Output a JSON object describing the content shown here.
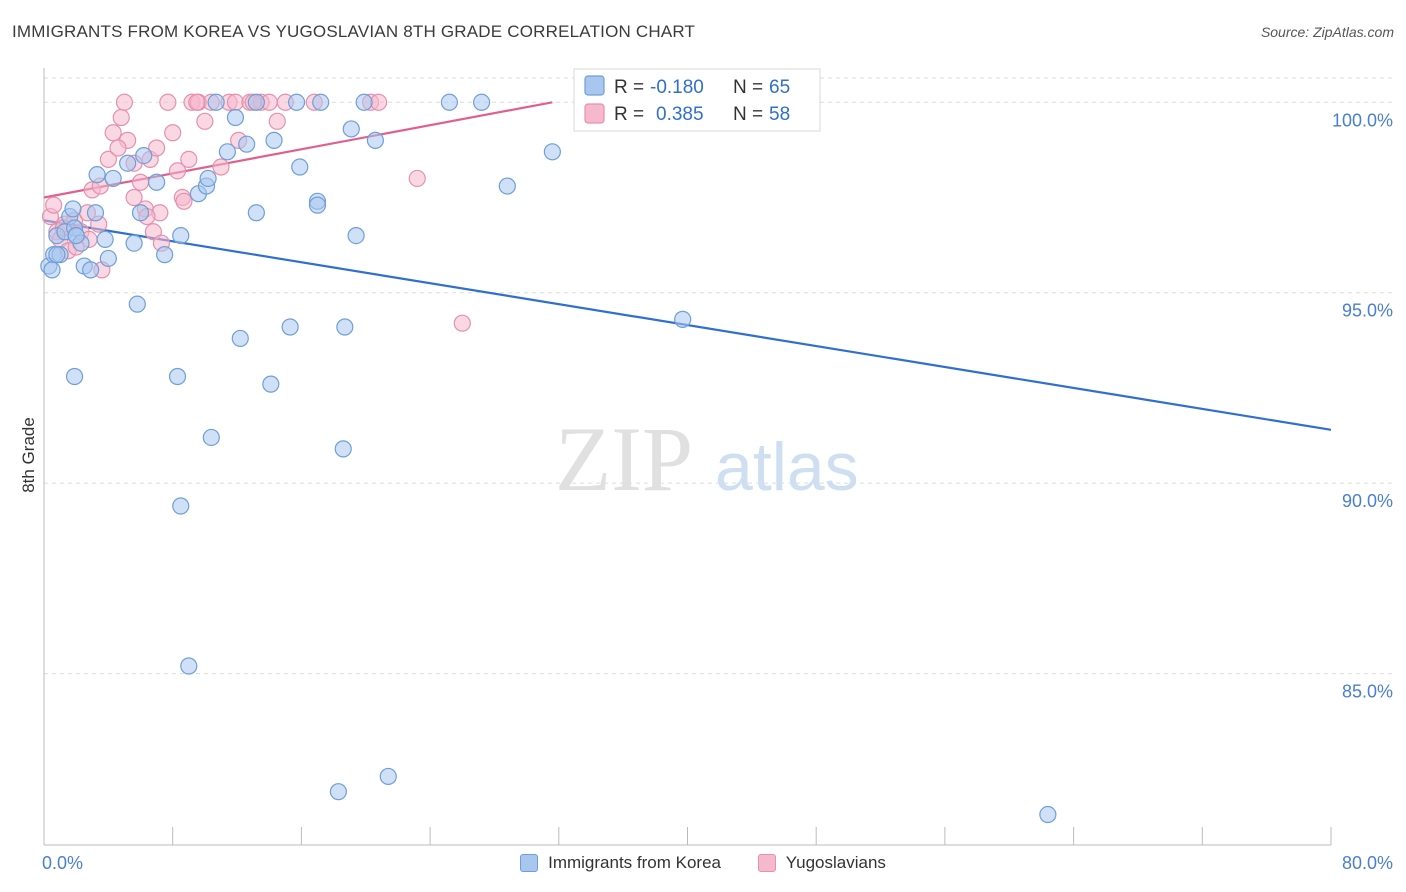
{
  "header": {
    "title": "IMMIGRANTS FROM KOREA VS YUGOSLAVIAN 8TH GRADE CORRELATION CHART",
    "source": "Source: ZipAtlas.com"
  },
  "watermark": {
    "zip": "ZIP",
    "atlas": "atlas"
  },
  "colors": {
    "blue_fill": "#a9c7ee",
    "blue_stroke": "#6f9fd8",
    "blue_line": "#2f6fd0",
    "pink_fill": "#f5b8cc",
    "pink_stroke": "#e690ad",
    "pink_line": "#e0608d",
    "tick_label": "#4a7fcf",
    "grid": "#dcdcdc"
  },
  "legend": {
    "rows": [
      {
        "r_label": "R =",
        "r_value": "-0.180",
        "n_label": "N =",
        "n_value": "65"
      },
      {
        "r_label": "R =",
        "r_value": "0.385",
        "n_label": "N =",
        "n_value": "58"
      }
    ]
  },
  "chart_data": {
    "type": "scatter",
    "title": "IMMIGRANTS FROM KOREA VS YUGOSLAVIAN 8TH GRADE CORRELATION CHART",
    "xlabel": "",
    "ylabel": "8th Grade",
    "xlim": [
      0,
      80
    ],
    "ylim": [
      80.5,
      100.9
    ],
    "x_tick_labels": [
      "0.0%",
      "80.0%"
    ],
    "y_ticks": [
      100,
      95,
      90,
      85
    ],
    "y_tick_labels": [
      "100.0%",
      "95.0%",
      "90.0%",
      "85.0%"
    ],
    "grid": true,
    "legend_position": "top-center",
    "series": [
      {
        "name": "Immigrants from Korea",
        "R": -0.18,
        "N": 65,
        "trend": {
          "x": [
            0,
            80
          ],
          "y": [
            96.9,
            91.4
          ]
        },
        "points": [
          [
            0.3,
            95.7
          ],
          [
            0.6,
            96.0
          ],
          [
            0.8,
            96.5
          ],
          [
            1.0,
            96.0
          ],
          [
            1.3,
            96.6
          ],
          [
            1.6,
            97.0
          ],
          [
            1.8,
            97.2
          ],
          [
            1.9,
            96.7
          ],
          [
            2.0,
            96.5
          ],
          [
            2.3,
            96.3
          ],
          [
            2.5,
            95.7
          ],
          [
            2.9,
            95.6
          ],
          [
            3.2,
            97.1
          ],
          [
            3.3,
            98.1
          ],
          [
            3.8,
            96.4
          ],
          [
            4.0,
            95.9
          ],
          [
            4.3,
            98.0
          ],
          [
            5.2,
            98.4
          ],
          [
            5.6,
            96.3
          ],
          [
            6.0,
            97.1
          ],
          [
            6.2,
            98.6
          ],
          [
            7.0,
            97.9
          ],
          [
            7.5,
            96.0
          ],
          [
            8.5,
            96.5
          ],
          [
            9.6,
            97.6
          ],
          [
            10.1,
            97.8
          ],
          [
            10.7,
            100.0
          ],
          [
            11.4,
            98.7
          ],
          [
            11.9,
            99.6
          ],
          [
            12.2,
            93.8
          ],
          [
            12.6,
            98.9
          ],
          [
            13.2,
            97.1
          ],
          [
            13.2,
            100.0
          ],
          [
            14.1,
            92.6
          ],
          [
            14.3,
            99.0
          ],
          [
            15.3,
            94.1
          ],
          [
            15.7,
            100.0
          ],
          [
            15.9,
            98.3
          ],
          [
            17.0,
            97.4
          ],
          [
            17.0,
            97.3
          ],
          [
            17.2,
            100.0
          ],
          [
            18.7,
            94.1
          ],
          [
            19.1,
            99.3
          ],
          [
            19.4,
            96.5
          ],
          [
            19.9,
            100.0
          ],
          [
            20.6,
            99.0
          ],
          [
            25.2,
            100.0
          ],
          [
            27.2,
            100.0
          ],
          [
            28.8,
            97.8
          ],
          [
            31.6,
            98.7
          ],
          [
            39.7,
            94.3
          ],
          [
            0.8,
            96.0
          ],
          [
            1.9,
            92.8
          ],
          [
            5.8,
            94.7
          ],
          [
            8.3,
            92.8
          ],
          [
            10.4,
            91.2
          ],
          [
            18.6,
            90.9
          ],
          [
            8.5,
            89.4
          ],
          [
            9.0,
            85.2
          ],
          [
            18.3,
            81.9
          ],
          [
            21.4,
            82.3
          ],
          [
            62.4,
            81.3
          ],
          [
            2.0,
            96.5
          ],
          [
            10.2,
            98.0
          ],
          [
            0.5,
            95.6
          ]
        ]
      },
      {
        "name": "Yugoslavians",
        "R": 0.385,
        "N": 58,
        "trend": {
          "x": [
            0,
            31.6
          ],
          "y": [
            97.5,
            100.0
          ]
        },
        "points": [
          [
            0.4,
            97.0
          ],
          [
            0.6,
            97.3
          ],
          [
            0.8,
            96.6
          ],
          [
            1.0,
            96.4
          ],
          [
            1.3,
            96.8
          ],
          [
            1.5,
            96.1
          ],
          [
            1.9,
            96.9
          ],
          [
            2.3,
            96.6
          ],
          [
            2.7,
            97.1
          ],
          [
            3.0,
            97.7
          ],
          [
            3.4,
            96.8
          ],
          [
            3.6,
            95.6
          ],
          [
            4.0,
            98.5
          ],
          [
            4.3,
            99.2
          ],
          [
            4.8,
            99.6
          ],
          [
            5.0,
            100.0
          ],
          [
            5.2,
            99.0
          ],
          [
            5.6,
            98.4
          ],
          [
            6.0,
            97.9
          ],
          [
            6.3,
            97.2
          ],
          [
            6.6,
            98.5
          ],
          [
            7.0,
            98.8
          ],
          [
            7.2,
            97.1
          ],
          [
            7.7,
            100.0
          ],
          [
            8.0,
            99.2
          ],
          [
            8.3,
            98.2
          ],
          [
            8.6,
            97.5
          ],
          [
            9.0,
            98.5
          ],
          [
            9.2,
            100.0
          ],
          [
            9.6,
            100.0
          ],
          [
            10.0,
            99.5
          ],
          [
            10.4,
            100.0
          ],
          [
            11.0,
            98.3
          ],
          [
            11.5,
            100.0
          ],
          [
            11.9,
            100.0
          ],
          [
            12.1,
            99.0
          ],
          [
            12.8,
            100.0
          ],
          [
            13.5,
            100.0
          ],
          [
            14.0,
            100.0
          ],
          [
            14.5,
            99.5
          ],
          [
            15.0,
            100.0
          ],
          [
            16.8,
            100.0
          ],
          [
            20.3,
            100.0
          ],
          [
            20.8,
            100.0
          ],
          [
            23.2,
            98.0
          ],
          [
            26.0,
            94.2
          ],
          [
            2.8,
            96.4
          ],
          [
            3.5,
            97.8
          ],
          [
            5.6,
            97.5
          ],
          [
            6.8,
            96.6
          ],
          [
            7.3,
            96.3
          ],
          [
            8.7,
            97.4
          ],
          [
            9.5,
            100.0
          ],
          [
            13.0,
            100.0
          ],
          [
            2.0,
            96.2
          ],
          [
            1.2,
            96.7
          ],
          [
            6.4,
            97.0
          ],
          [
            4.6,
            98.8
          ]
        ]
      }
    ]
  },
  "bottom_legend": {
    "items": [
      "Immigrants from Korea",
      "Yugoslavians"
    ]
  }
}
